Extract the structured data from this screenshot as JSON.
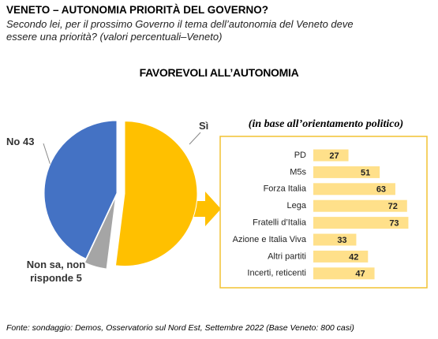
{
  "header": {
    "title": "VENETO – AUTONOMIA PRIORITÀ DEL GOVERNO?",
    "subtitle": "Secondo lei, per il prossimo Governo il tema dell’autonomia del Veneto deve essere una priorità? (valori percentuali–Veneto)"
  },
  "chart_data": [
    {
      "type": "pie",
      "title": "FAVOREVOLI ALL’AUTONOMIA",
      "categories": [
        "Sì",
        "Non sa, non risponde",
        "No"
      ],
      "values": [
        52,
        5,
        43
      ],
      "value_labels": [
        null,
        "5",
        "43"
      ],
      "colors": [
        "#ffc000",
        "#a5a5a5",
        "#4472c4"
      ]
    },
    {
      "type": "hbar",
      "subtitle": "(in base all’orientamento politico)",
      "categories": [
        "PD",
        "M5s",
        "Forza Italia",
        "Lega",
        "Fratelli d’Italia",
        "Azione e Italia Viva",
        "Altri partiti",
        "Incerti, reticenti"
      ],
      "values": [
        27,
        51,
        63,
        72,
        73,
        33,
        42,
        47
      ],
      "color": "#ffe08a"
    }
  ],
  "source": "Fonte: sondaggio: Demos, Osservatorio sul Nord Est, Settembre 2022 (Base Veneto: 800 casi)"
}
